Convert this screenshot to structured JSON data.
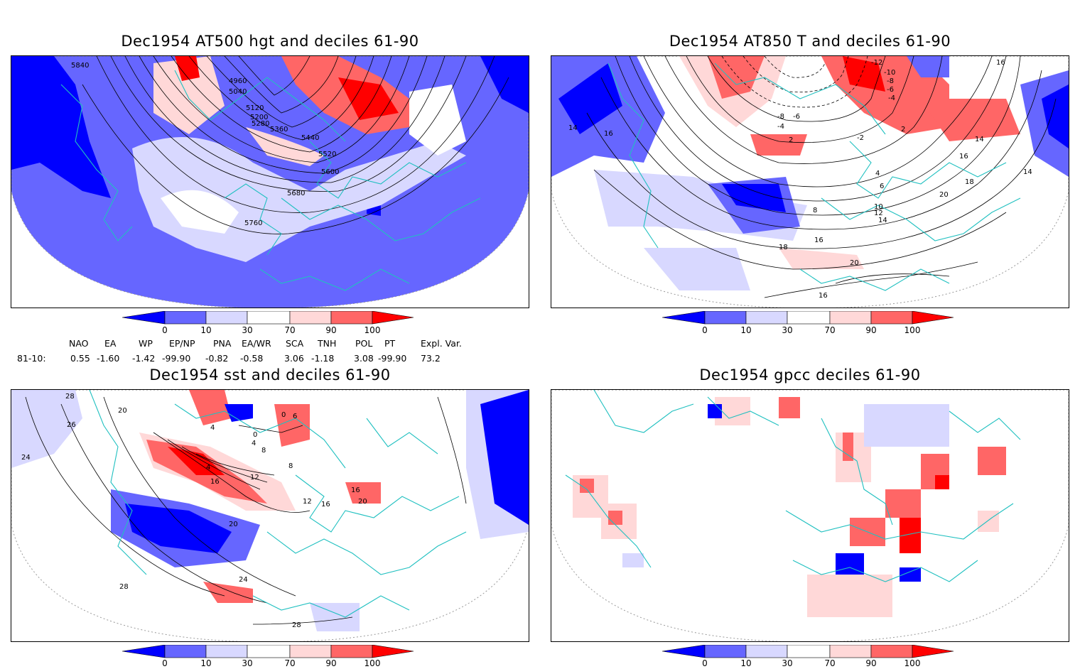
{
  "panels": [
    {
      "title": "Dec1954 AT500 hgt and deciles 61-90",
      "contour_labels": [
        "5840",
        "4960",
        "5040",
        "5120",
        "5200",
        "5280",
        "5360",
        "5440",
        "5520",
        "5600",
        "5680",
        "5760"
      ]
    },
    {
      "title": "Dec1954 AT850 T and deciles 61-90",
      "contour_labels": [
        "14",
        "16",
        "-12",
        "-10",
        "-8",
        "-6",
        "-4",
        "-2",
        "2",
        "4",
        "6",
        "8",
        "10",
        "12",
        "14",
        "16",
        "18",
        "20",
        "-8",
        "-6",
        "-4",
        "2",
        "16",
        "18",
        "20",
        "16",
        "14",
        "14",
        "16"
      ]
    },
    {
      "title": "Dec1954 sst and deciles 61-90",
      "contour_labels": [
        "28",
        "20",
        "26",
        "24",
        "0",
        "4",
        "0",
        "4",
        "8",
        "12",
        "16",
        "4",
        "8",
        "12",
        "16",
        "20",
        "24",
        "28",
        "28",
        "20",
        "16",
        "6"
      ]
    },
    {
      "title": "Dec1954 gpcc deciles 61-90",
      "contour_labels": []
    }
  ],
  "colorbar": {
    "ticks": [
      "0",
      "10",
      "30",
      "70",
      "90",
      "100"
    ],
    "colors": [
      "#0000ff",
      "#6666ff",
      "#d8d8ff",
      "#ffffff",
      "#ffd8d8",
      "#ff6666",
      "#ff0000"
    ]
  },
  "indices": {
    "headers": [
      "NAO",
      "EA",
      "WP",
      "EP/NP",
      "PNA",
      "EA/WR",
      "SCA",
      "TNH",
      "POL",
      "PT",
      "Expl. Var."
    ],
    "row_label": "81-10:",
    "values": [
      "0.55",
      "-1.60",
      "-1.42",
      "-99.90",
      "-0.82",
      "-0.58",
      "3.06",
      "-1.18",
      "3.08",
      "-99.90",
      "73.2"
    ]
  }
}
